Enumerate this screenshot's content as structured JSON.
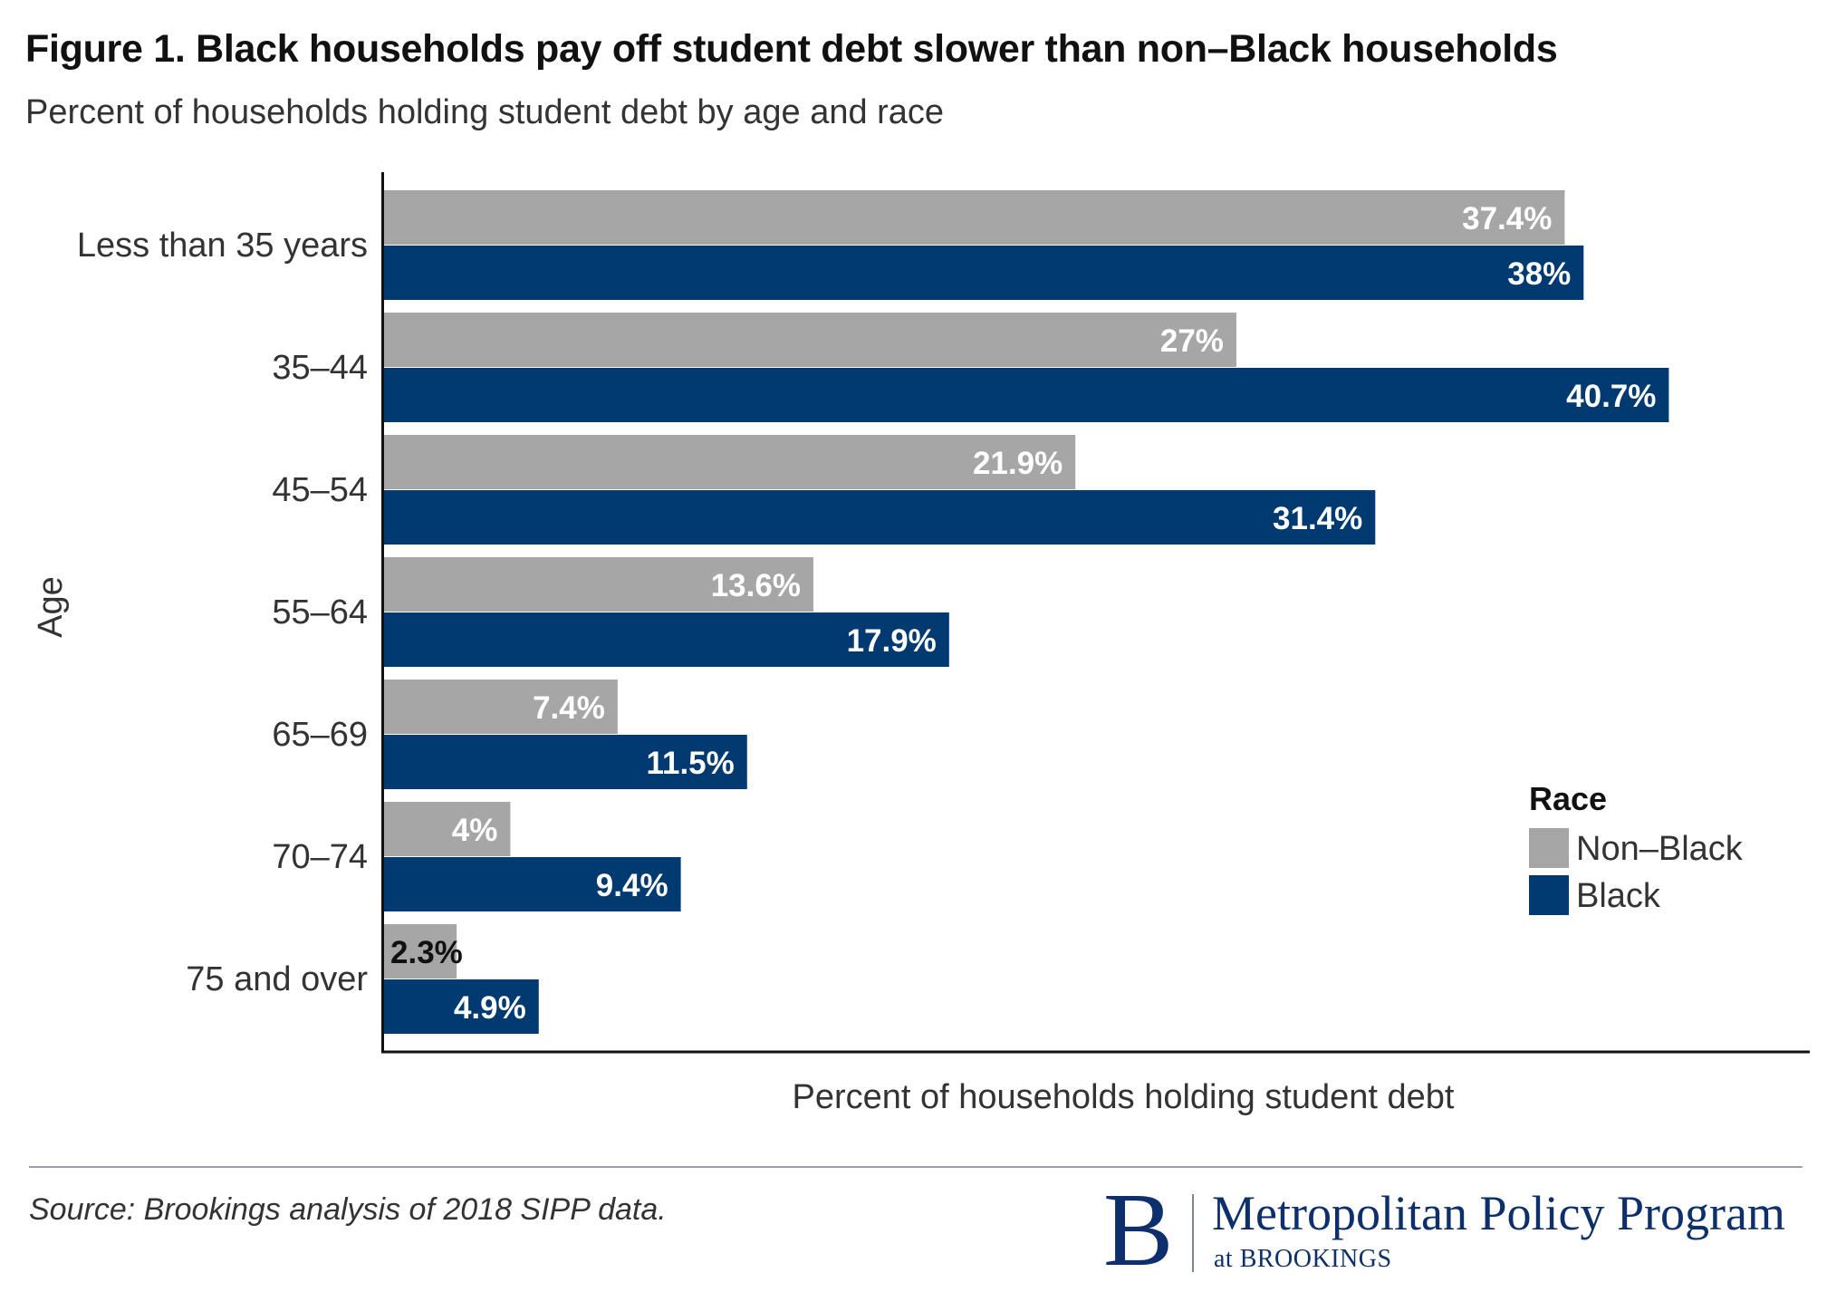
{
  "chart_data": {
    "type": "bar",
    "orientation": "horizontal",
    "title": "Figure 1. Black households pay off student debt slower than non–Black households",
    "subtitle": "Percent of households holding student debt by age and race",
    "xlabel": "Percent of households holding student debt",
    "ylabel": "Age",
    "xlim": [
      0,
      42
    ],
    "categories": [
      "Less than 35 years",
      "35–44",
      "45–54",
      "55–64",
      "65–69",
      "70–74",
      "75 and over"
    ],
    "series": [
      {
        "name": "Non–Black",
        "color": "#a6a6a6",
        "values": [
          37.4,
          27,
          21.9,
          13.6,
          7.4,
          4,
          2.3
        ],
        "labels": [
          "37.4%",
          "27%",
          "21.9%",
          "13.6%",
          "7.4%",
          "4%",
          "2.3%"
        ]
      },
      {
        "name": "Black",
        "color": "#003a70",
        "values": [
          38,
          40.7,
          31.4,
          17.9,
          11.5,
          9.4,
          4.9
        ],
        "labels": [
          "38%",
          "40.7%",
          "31.4%",
          "17.9%",
          "11.5%",
          "9.4%",
          "4.9%"
        ]
      }
    ],
    "legend": {
      "title": "Race",
      "position": "right"
    },
    "grid": false
  },
  "footer": {
    "source": "Source: Brookings analysis of 2018 SIPP data.",
    "logo_letter": "B",
    "logo_name": "Metropolitan Policy Program",
    "logo_sub": "at BROOKINGS"
  }
}
